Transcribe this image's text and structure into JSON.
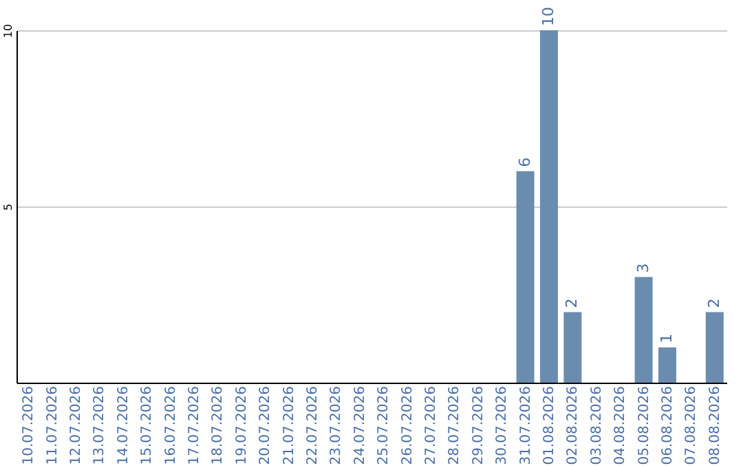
{
  "chart_data": {
    "type": "bar",
    "categories": [
      "10.07.2026",
      "11.07.2026",
      "12.07.2026",
      "13.07.2026",
      "14.07.2026",
      "15.07.2026",
      "16.07.2026",
      "17.07.2026",
      "18.07.2026",
      "19.07.2026",
      "20.07.2026",
      "21.07.2026",
      "22.07.2026",
      "23.07.2026",
      "24.07.2026",
      "25.07.2026",
      "26.07.2026",
      "27.07.2026",
      "28.07.2026",
      "29.07.2026",
      "30.07.2026",
      "31.07.2026",
      "01.08.2026",
      "02.08.2026",
      "03.08.2026",
      "04.08.2026",
      "05.08.2026",
      "06.08.2026",
      "07.08.2026",
      "08.08.2026"
    ],
    "values": [
      0,
      0,
      0,
      0,
      0,
      0,
      0,
      0,
      0,
      0,
      0,
      0,
      0,
      0,
      0,
      0,
      0,
      0,
      0,
      0,
      0,
      6,
      10,
      2,
      0,
      0,
      3,
      1,
      0,
      2
    ],
    "value_labels": [
      null,
      null,
      null,
      null,
      null,
      null,
      null,
      null,
      null,
      null,
      null,
      null,
      null,
      null,
      null,
      null,
      null,
      null,
      null,
      null,
      null,
      "6",
      "10",
      "2",
      null,
      null,
      "3",
      "1",
      null,
      "2"
    ],
    "color": "#6a8caf",
    "ylim": [
      0,
      10
    ],
    "yticks": [
      5,
      10
    ],
    "grid": "y"
  }
}
